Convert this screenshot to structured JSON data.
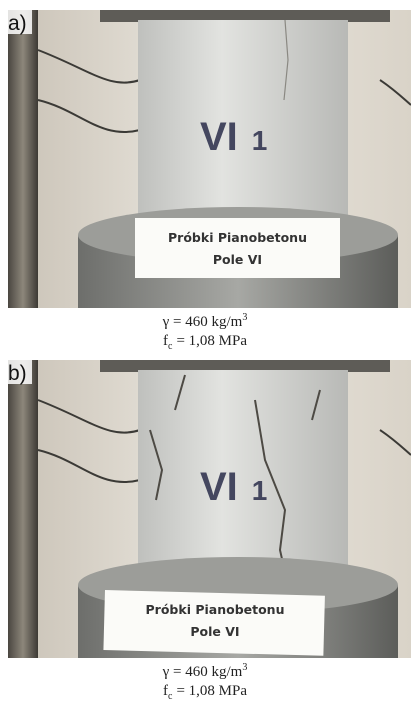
{
  "panels": [
    {
      "label": "a)",
      "card": [
        "Próbki Pianobetonu",
        "Pole VI"
      ],
      "marking": [
        "VI",
        "1"
      ],
      "caption": {
        "density": "γ = 460 kg/m",
        "density_exponent": "3",
        "strength_symbol": "f",
        "strength_subscript": "c",
        "strength_value": "= 1,08 MPa"
      }
    },
    {
      "label": "b)",
      "card": [
        "Próbki Pianobetonu",
        "Pole VI"
      ],
      "marking": [
        "VI",
        "1"
      ],
      "caption": {
        "density": "γ = 460 kg/m",
        "density_exponent": "3",
        "strength_symbol": "f",
        "strength_subscript": "c",
        "strength_value": "= 1,08 MPa"
      }
    }
  ]
}
